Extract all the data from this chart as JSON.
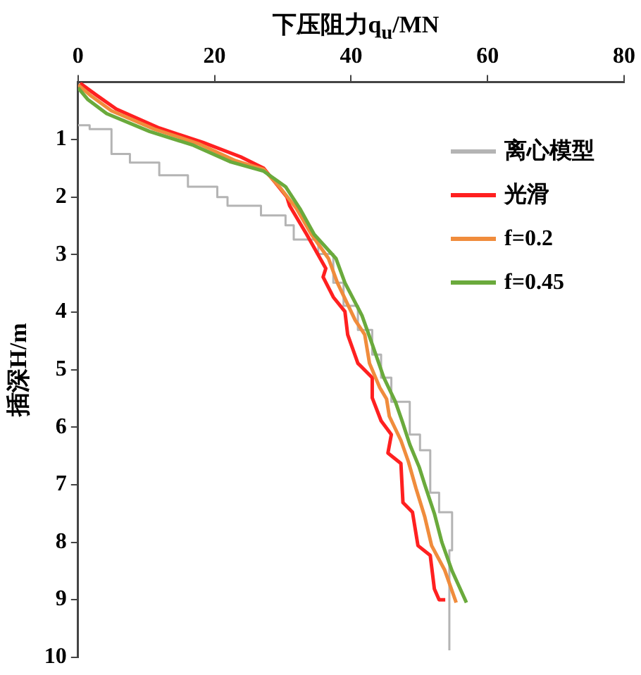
{
  "chart_data": {
    "type": "line",
    "xlabel": "下压阻力q$_{u}$/MN",
    "ylabel": "插深H/m",
    "xlim": [
      0,
      80
    ],
    "xticks": [
      0,
      20,
      40,
      60,
      80
    ],
    "ylim": [
      10,
      0
    ],
    "yticks": [
      1,
      2,
      3,
      4,
      5,
      6,
      7,
      8,
      9,
      10
    ],
    "grid": false,
    "legend": "right",
    "marker": "none",
    "line_style": "solid",
    "series": [
      {
        "name": "离心模型",
        "type": "step",
        "color": "#b4b4b4",
        "x": [
          0,
          1.7,
          4.9,
          7.6,
          11.9,
          16.1,
          20.4,
          21.9,
          26.8,
          30.4,
          31.6,
          35.2,
          37.4,
          38.9,
          41,
          43.1,
          44.4,
          45.9,
          48.6,
          50.1,
          51.6,
          52.9,
          54.8,
          54.4,
          54.4
        ],
        "values": [
          0.75,
          0.82,
          1.25,
          1.4,
          1.62,
          1.82,
          2.0,
          2.15,
          2.32,
          2.49,
          2.74,
          2.99,
          3.49,
          3.89,
          4.31,
          4.74,
          5.14,
          5.56,
          6.13,
          6.4,
          7.14,
          7.48,
          8.14,
          9.13,
          9.88
        ]
      },
      {
        "name": "光滑",
        "color": "#ff2020",
        "x": [
          0.3,
          2.6,
          5.6,
          11.9,
          18.3,
          23.8,
          27.2,
          28.9,
          30.6,
          31,
          33.5,
          36.3,
          35.9,
          37.4,
          39.1,
          39.5,
          41,
          43.1,
          43.1,
          44.4,
          45.9,
          45.4,
          47.3,
          47.6,
          49,
          49.8,
          51.6,
          52.2,
          52.9,
          53.8
        ],
        "values": [
          0.02,
          0.22,
          0.47,
          0.8,
          1.05,
          1.3,
          1.5,
          1.75,
          2.0,
          2.15,
          2.65,
          3.24,
          3.39,
          3.74,
          3.99,
          4.39,
          4.89,
          5.14,
          5.49,
          5.89,
          6.13,
          6.45,
          6.63,
          7.31,
          7.48,
          8.06,
          8.23,
          8.81,
          9.0,
          9.0
        ]
      },
      {
        "name": "f=0.2",
        "color": "#f08c3c",
        "x": [
          0,
          2,
          4.9,
          11.2,
          17.6,
          23.1,
          27.2,
          29.5,
          32,
          34.2,
          36.7,
          38,
          40.6,
          42,
          42.7,
          44.2,
          45.2,
          45.6,
          47.3,
          48.4,
          49.5,
          50.8,
          51.8,
          53.7,
          55.4
        ],
        "values": [
          0.05,
          0.25,
          0.5,
          0.82,
          1.07,
          1.37,
          1.52,
          1.82,
          2.2,
          2.65,
          3.07,
          3.49,
          4.14,
          4.39,
          4.89,
          5.31,
          5.51,
          5.81,
          6.23,
          6.6,
          7.06,
          7.56,
          8.06,
          8.48,
          9.05
        ]
      },
      {
        "name": "f=0.45",
        "color": "#6aaa3c",
        "x": [
          0,
          1.4,
          4.2,
          10.5,
          16.9,
          22.4,
          27.2,
          30.4,
          32.5,
          34.6,
          37.8,
          39.1,
          41.6,
          43.1,
          44.8,
          46.5,
          47.5,
          48.6,
          50,
          50.8,
          52.2,
          53.3,
          54.8,
          56.9
        ],
        "values": [
          0.1,
          0.3,
          0.55,
          0.86,
          1.1,
          1.39,
          1.55,
          1.82,
          2.2,
          2.65,
          3.07,
          3.49,
          4.06,
          4.56,
          5.14,
          5.56,
          5.9,
          6.3,
          6.7,
          7.0,
          7.5,
          8.0,
          8.5,
          9.05
        ]
      }
    ]
  }
}
